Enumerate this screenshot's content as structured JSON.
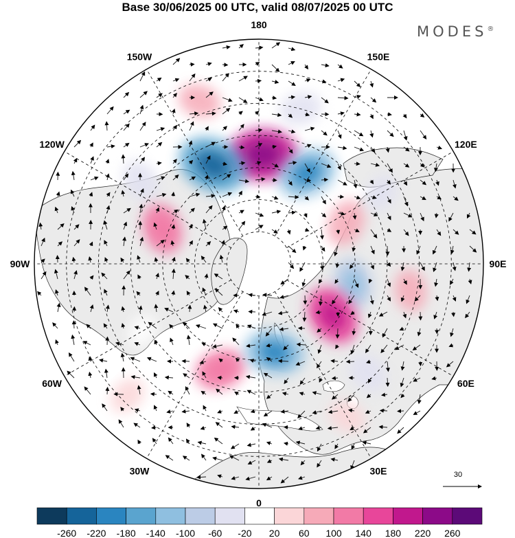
{
  "title": "Base 30/06/2025 00 UTC, valid 08/07/2025 00 UTC",
  "brand": "MODES",
  "brand_mark": "®",
  "longitude_labels": [
    {
      "lon": 180,
      "text": "180"
    },
    {
      "lon": 150,
      "text": "150E"
    },
    {
      "lon": 120,
      "text": "120E"
    },
    {
      "lon": 90,
      "text": "90E"
    },
    {
      "lon": 60,
      "text": "60E"
    },
    {
      "lon": 30,
      "text": "30E"
    },
    {
      "lon": 0,
      "text": "0"
    },
    {
      "lon": -30,
      "text": "30W"
    },
    {
      "lon": -60,
      "text": "60W"
    },
    {
      "lon": -90,
      "text": "90W"
    },
    {
      "lon": -120,
      "text": "120W"
    },
    {
      "lon": -150,
      "text": "150W"
    }
  ],
  "latitude_circles": [
    80,
    70,
    60,
    50,
    40,
    30
  ],
  "vector_reference": {
    "label": "30",
    "value": 30
  },
  "colorbar": {
    "colors": [
      "#0d3a5c",
      "#15649a",
      "#2a85c0",
      "#5aa4cf",
      "#8fbfe0",
      "#bccce6",
      "#e1e1f1",
      "#ffffff",
      "#fbd6d8",
      "#f6aab8",
      "#f27aa6",
      "#e8469a",
      "#c1188d",
      "#8c0a88",
      "#5c0a78"
    ],
    "labels": [
      "-260",
      "-220",
      "-180",
      "-140",
      "-100",
      "-60",
      "-20",
      "20",
      "60",
      "100",
      "140",
      "180",
      "220",
      "260"
    ]
  },
  "anomaly_centers": [
    {
      "lon": 178,
      "lat": 56,
      "value": 180
    },
    {
      "lon": -155,
      "lat": 56,
      "value": -180
    },
    {
      "lon": 152,
      "lat": 58,
      "value": -140
    },
    {
      "lon": -125,
      "lat": 45,
      "value": -60
    },
    {
      "lon": -110,
      "lat": 58,
      "value": 100
    },
    {
      "lon": 115,
      "lat": 60,
      "value": 80
    },
    {
      "lon": 78,
      "lat": 60,
      "value": -100
    },
    {
      "lon": 55,
      "lat": 62,
      "value": 140
    },
    {
      "lon": -20,
      "lat": 55,
      "value": 100
    },
    {
      "lon": 10,
      "lat": 62,
      "value": -140
    },
    {
      "lon": 45,
      "lat": 42,
      "value": -60
    },
    {
      "lon": 80,
      "lat": 42,
      "value": 60
    },
    {
      "lon": 165,
      "lat": 40,
      "value": -60
    },
    {
      "lon": -160,
      "lat": 36,
      "value": 60
    },
    {
      "lon": -60,
      "lat": 48,
      "value": -20
    },
    {
      "lon": 120,
      "lat": 46,
      "value": -40
    },
    {
      "lon": 30,
      "lat": 35,
      "value": 40
    },
    {
      "lon": -45,
      "lat": 32,
      "value": 40
    }
  ]
}
